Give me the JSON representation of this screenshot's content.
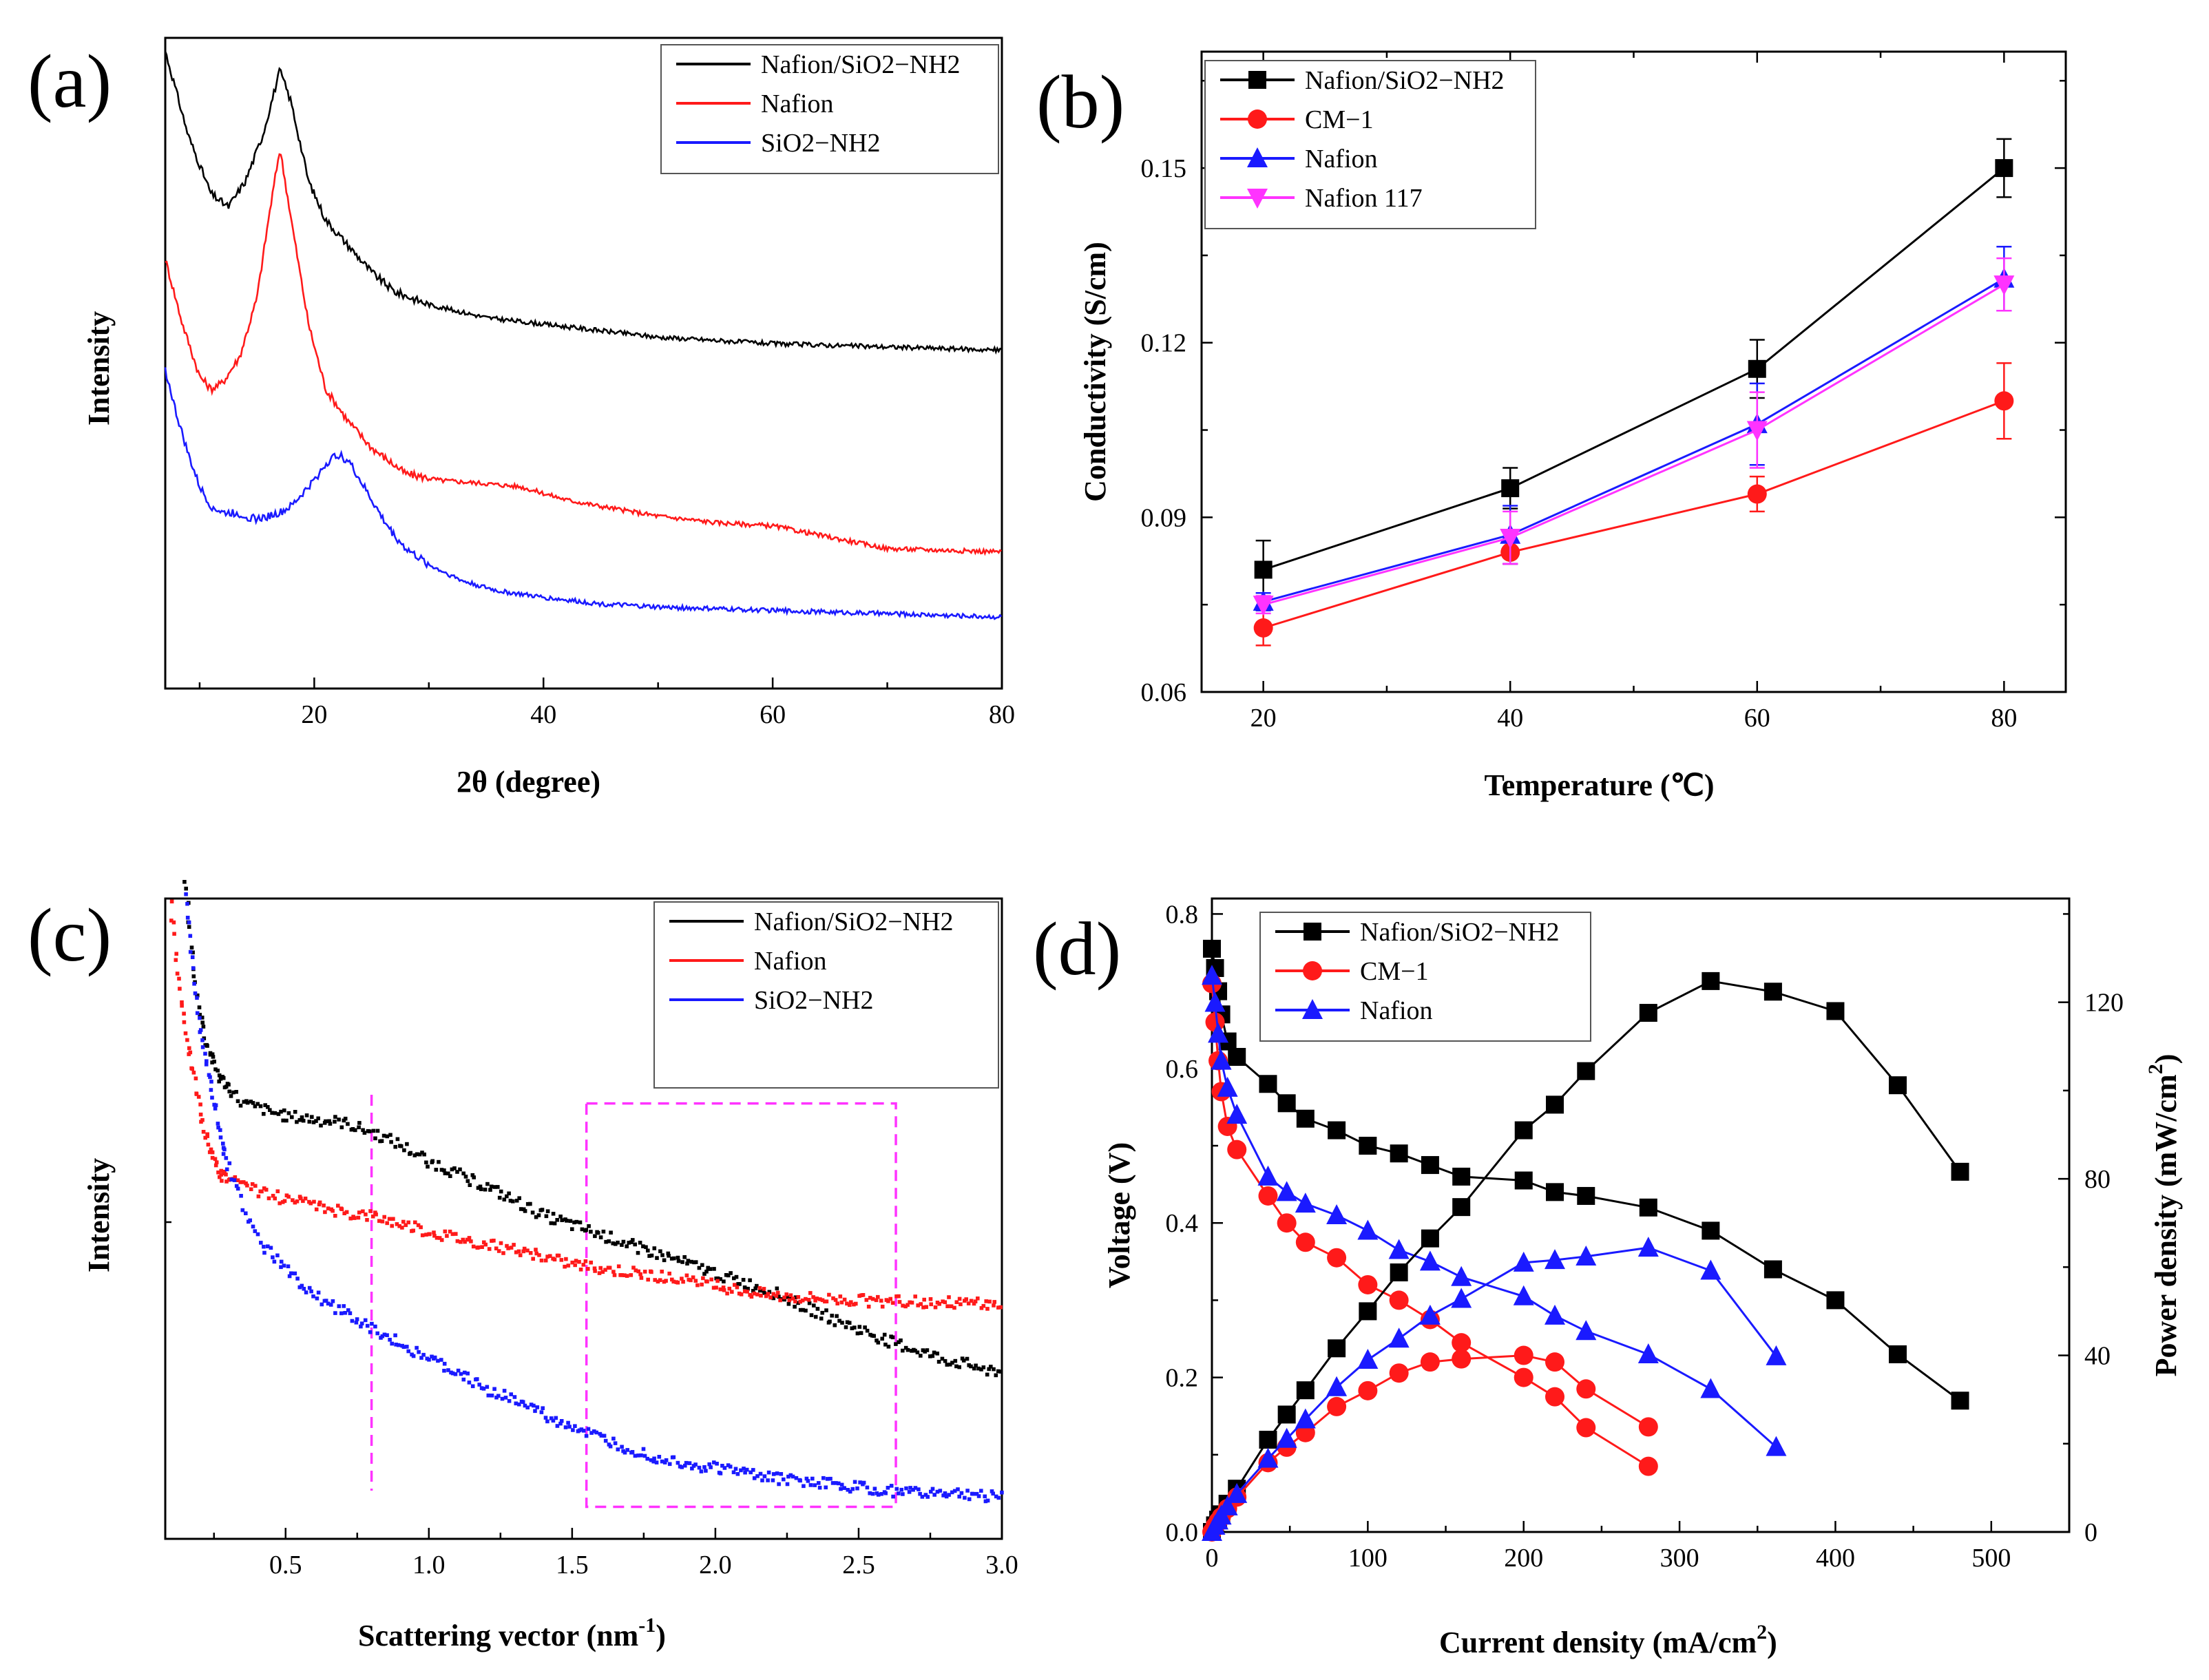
{
  "panels": {
    "a": {
      "label": "(a)"
    },
    "b": {
      "label": "(b)"
    },
    "c": {
      "label": "(c)"
    },
    "d": {
      "label": "(d)"
    }
  },
  "colors": {
    "black": "#000000",
    "red": "#ff1a1a",
    "blue": "#1a1aff",
    "magenta": "#ff33ff"
  },
  "chart_data": [
    {
      "id": "a",
      "type": "line",
      "title": "",
      "xlabel": "2θ (degree)",
      "ylabel": "Intensity",
      "xlim": [
        7,
        80
      ],
      "ylim": [
        0,
        100
      ],
      "xticks": [
        "20",
        "40",
        "60",
        "80"
      ],
      "yticks": [],
      "legend_position": "top-right",
      "series": [
        {
          "name": "Nafion/SiO2−NH2",
          "color": "#000000",
          "x": [
            7,
            9,
            11,
            12.5,
            14,
            15.5,
            17,
            18,
            19.5,
            21,
            23,
            25,
            27,
            30,
            35,
            40,
            45,
            50,
            60,
            70,
            80
          ],
          "y": [
            98,
            85,
            76,
            74,
            78,
            85,
            95,
            90,
            78,
            72,
            68,
            64,
            61,
            59,
            57,
            56,
            55,
            54,
            53,
            52.5,
            52
          ]
        },
        {
          "name": "Nafion",
          "color": "#ff1a1a",
          "x": [
            7,
            8.5,
            10,
            11,
            12,
            13.5,
            15,
            16,
            17,
            18,
            19.5,
            21,
            23,
            25,
            28,
            31,
            35,
            38,
            42,
            45,
            50,
            55,
            60,
            70,
            80
          ],
          "y": [
            66,
            56,
            48,
            46,
            47,
            51,
            60,
            72,
            83,
            72,
            56,
            46,
            41,
            37,
            33,
            32,
            31.5,
            31,
            29,
            28,
            26.5,
            25.5,
            25,
            21.5,
            21
          ]
        },
        {
          "name": "SiO2−NH2",
          "color": "#1a1aff",
          "x": [
            7,
            8,
            9,
            10,
            11,
            12,
            13,
            14,
            15,
            16,
            17,
            18,
            19,
            20,
            21,
            22,
            23,
            24,
            25,
            26,
            27,
            28,
            30,
            33,
            36,
            40,
            45,
            50,
            60,
            70,
            80
          ],
          "y": [
            49,
            42,
            36,
            31,
            28,
            27,
            27,
            26.5,
            26,
            26.5,
            27,
            28,
            30,
            32,
            34.5,
            36,
            35,
            32,
            29,
            26,
            23.5,
            21.5,
            19,
            16.5,
            15,
            14,
            13,
            12.5,
            12,
            11.5,
            11
          ]
        }
      ]
    },
    {
      "id": "b",
      "type": "line",
      "title": "",
      "xlabel": "Temperature (℃)",
      "ylabel": "Conductivity (S/cm)",
      "xlim": [
        15,
        85
      ],
      "ylim": [
        0.06,
        0.17
      ],
      "xticks": [
        "20",
        "40",
        "60",
        "80"
      ],
      "yticks": [
        "0.06",
        "0.09",
        "0.12",
        "0.15"
      ],
      "legend_position": "top-left",
      "categories": [
        20,
        40,
        60,
        80
      ],
      "series": [
        {
          "name": "Nafion/SiO2−NH2",
          "color": "#000000",
          "marker": "square",
          "values": [
            0.081,
            0.095,
            0.1155,
            0.15
          ],
          "errors": [
            0.005,
            0.0035,
            0.005,
            0.005
          ]
        },
        {
          "name": "CM−1",
          "color": "#ff1a1a",
          "marker": "circle",
          "values": [
            0.071,
            0.084,
            0.094,
            0.11
          ],
          "errors": [
            0.003,
            0.002,
            0.003,
            0.0065
          ]
        },
        {
          "name": "Nafion",
          "color": "#1a1aff",
          "marker": "triangle-up",
          "values": [
            0.0755,
            0.087,
            0.106,
            0.131
          ],
          "errors": [
            0.0015,
            0.005,
            0.007,
            0.0055
          ]
        },
        {
          "name": "Nafion 117",
          "color": "#ff33ff",
          "marker": "triangle-down",
          "values": [
            0.075,
            0.0865,
            0.105,
            0.13
          ],
          "errors": [
            0.0015,
            0.0045,
            0.0065,
            0.0045
          ]
        }
      ]
    },
    {
      "id": "c",
      "type": "scatter",
      "title": "",
      "xlabel": "Scattering vector (nm",
      "xlabel_sup": "-1",
      "xlabel_close": ")",
      "ylabel": "Intensity",
      "xlim": [
        0.08,
        3.0
      ],
      "ylim": [
        0,
        100
      ],
      "xticks": [
        "0.5",
        "1.0",
        "1.5",
        "2.0",
        "2.5",
        "3.0"
      ],
      "yticks": [],
      "legend_position": "top-right",
      "annotations": [
        {
          "type": "vertical-dashed-line",
          "x": 0.8,
          "color": "#ff33ff"
        },
        {
          "type": "dashed-rectangle",
          "x": [
            1.55,
            2.63
          ],
          "y": [
            5,
            68
          ],
          "color": "#ff33ff"
        }
      ],
      "series": [
        {
          "name": "Nafion/SiO2−NH2",
          "color": "#000000",
          "x": [
            0.15,
            0.18,
            0.22,
            0.27,
            0.35,
            0.5,
            0.7,
            0.8,
            0.9,
            1.0,
            1.2,
            1.4,
            1.6,
            1.8,
            2.0,
            2.2,
            2.4,
            2.6,
            2.8,
            3.0
          ],
          "y": [
            103,
            88,
            78,
            72,
            68,
            66,
            65,
            63.5,
            61.5,
            59,
            55,
            50.5,
            47.5,
            44.5,
            41.5,
            38.5,
            34.5,
            31,
            28,
            26
          ]
        },
        {
          "name": "Nafion",
          "color": "#ff1a1a",
          "x": [
            0.1,
            0.12,
            0.15,
            0.18,
            0.22,
            0.27,
            0.35,
            0.5,
            0.7,
            0.8,
            1.0,
            1.2,
            1.5,
            1.8,
            2.0,
            2.2,
            2.4,
            2.6,
            2.8,
            3.0
          ],
          "y": [
            99,
            90,
            80,
            72,
            63,
            57,
            55,
            53,
            51,
            50.5,
            48,
            46,
            43,
            41,
            39.5,
            38,
            37.5,
            37,
            37,
            36.5
          ]
        },
        {
          "name": "SiO2−NH2",
          "color": "#1a1aff",
          "x": [
            0.15,
            0.17,
            0.2,
            0.25,
            0.3,
            0.4,
            0.5,
            0.6,
            0.8,
            1.0,
            1.2,
            1.4,
            1.6,
            1.8,
            2.0,
            2.2,
            2.4,
            2.6,
            2.8,
            3.0
          ],
          "y": [
            101,
            92,
            80,
            68,
            58,
            47,
            42,
            38,
            33,
            28,
            23.5,
            19.5,
            15.5,
            12.5,
            11,
            9.5,
            8.5,
            7.5,
            7,
            6.5
          ]
        }
      ]
    },
    {
      "id": "d",
      "type": "line",
      "title": "",
      "xlabel": "Current density (mA/cm",
      "xlabel_sup": "2",
      "xlabel_close": ")",
      "ylabel": "Voltage (V)",
      "ylabel_right": "Power density (mW/cm",
      "ylabel_right_sup": "2",
      "ylabel_right_close": ")",
      "xlim": [
        0,
        550
      ],
      "ylim": [
        0,
        0.82
      ],
      "ylim_right": [
        0,
        143.5
      ],
      "xticks": [
        "0",
        "100",
        "200",
        "300",
        "400",
        "500"
      ],
      "yticks": [
        "0.0",
        "0.2",
        "0.4",
        "0.6",
        "0.8"
      ],
      "yticks_right": [
        "0",
        "40",
        "80",
        "120"
      ],
      "legend_position": "top-left",
      "series": [
        {
          "name": "Nafion/SiO2−NH2",
          "color": "#000000",
          "marker": "square",
          "axis": "left",
          "x": [
            0,
            2,
            4,
            6,
            10,
            16,
            36,
            48,
            60,
            80,
            100,
            120,
            140,
            160,
            200,
            220,
            240,
            280,
            320,
            360,
            400,
            440,
            480
          ],
          "y": [
            0.755,
            0.73,
            0.7,
            0.67,
            0.635,
            0.615,
            0.58,
            0.555,
            0.535,
            0.52,
            0.5,
            0.49,
            0.475,
            0.46,
            0.455,
            0.44,
            0.435,
            0.42,
            0.39,
            0.34,
            0.3,
            0.23,
            0.17
          ]
        },
        {
          "name": "CM−1",
          "color": "#ff1a1a",
          "marker": "circle",
          "axis": "left",
          "x": [
            0,
            2,
            4,
            6,
            10,
            16,
            36,
            48,
            60,
            80,
            100,
            120,
            140,
            160,
            200,
            220,
            240,
            280
          ],
          "y": [
            0.71,
            0.66,
            0.61,
            0.57,
            0.525,
            0.495,
            0.435,
            0.4,
            0.375,
            0.355,
            0.32,
            0.3,
            0.275,
            0.245,
            0.2,
            0.175,
            0.135,
            0.085
          ]
        },
        {
          "name": "Nafion",
          "color": "#1a1aff",
          "marker": "triangle-up",
          "axis": "left",
          "x": [
            0,
            2,
            4,
            6,
            10,
            16,
            36,
            48,
            60,
            80,
            100,
            120,
            140,
            160,
            200,
            220,
            240,
            280,
            320,
            362
          ],
          "y": [
            0.72,
            0.685,
            0.645,
            0.61,
            0.575,
            0.54,
            0.46,
            0.44,
            0.425,
            0.41,
            0.39,
            0.365,
            0.35,
            0.33,
            0.305,
            0.28,
            0.26,
            0.23,
            0.185,
            0.11
          ]
        },
        {
          "name": "Nafion/SiO2−NH2 power",
          "color": "#000000",
          "marker": "square",
          "axis": "right",
          "x": [
            0,
            2,
            4,
            6,
            10,
            16,
            36,
            48,
            60,
            80,
            100,
            120,
            140,
            160,
            200,
            220,
            240,
            280,
            320,
            360,
            400,
            440,
            480
          ],
          "y": [
            0,
            1.5,
            2.8,
            4.0,
            6.4,
            9.8,
            20.9,
            26.6,
            32.1,
            41.6,
            50.0,
            58.8,
            66.5,
            73.6,
            91.0,
            96.8,
            104.4,
            117.6,
            124.8,
            122.4,
            118.0,
            101.2,
            81.6
          ]
        },
        {
          "name": "CM−1 power",
          "color": "#ff1a1a",
          "marker": "circle",
          "axis": "right",
          "x": [
            0,
            2,
            4,
            6,
            10,
            16,
            36,
            48,
            60,
            80,
            100,
            120,
            140,
            160,
            200,
            220,
            240,
            280
          ],
          "y": [
            0,
            1.3,
            2.4,
            3.4,
            5.3,
            7.9,
            15.7,
            19.2,
            22.5,
            28.4,
            32.0,
            36.0,
            38.5,
            39.2,
            40.0,
            38.5,
            32.4,
            23.8
          ]
        },
        {
          "name": "Nafion power",
          "color": "#1a1aff",
          "marker": "triangle-up",
          "axis": "right",
          "x": [
            0,
            2,
            4,
            6,
            10,
            16,
            36,
            48,
            60,
            80,
            100,
            120,
            140,
            160,
            200,
            220,
            240,
            280,
            320,
            362
          ],
          "y": [
            0,
            1.4,
            2.6,
            3.7,
            5.8,
            8.6,
            16.6,
            21.1,
            25.5,
            32.8,
            39.0,
            43.8,
            49.0,
            52.8,
            61.0,
            61.6,
            62.4,
            64.4,
            59.2,
            39.8
          ]
        }
      ]
    }
  ]
}
